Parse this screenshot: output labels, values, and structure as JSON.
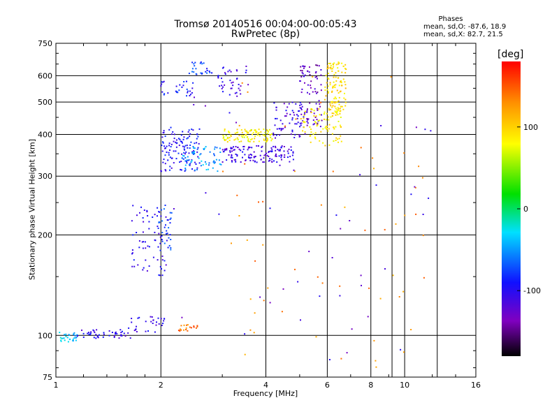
{
  "title": {
    "line1": "Tromsø 20140516 00:04:00-00:05:43",
    "line2": "RwPretec (8p)"
  },
  "phases": {
    "label": "Phases",
    "o_stats": "mean, sd,O: -87.6, 18.9",
    "x_stats": "mean, sd,X:  82.7, 21.5"
  },
  "colorbar": {
    "unit": "[deg]",
    "range": [
      -180,
      180
    ],
    "ticks": [
      {
        "value": 100,
        "label": "100"
      },
      {
        "value": 0,
        "label": "0"
      },
      {
        "value": -100,
        "label": "-100"
      }
    ]
  },
  "chart_data": {
    "type": "scatter",
    "title": "Tromsø 20140516 00:04:00-00:05:43",
    "subtitle": "RwPretec (8p)",
    "xlabel": "Frequency [MHz]",
    "ylabel": "Stationary phase Virtual Height [km]",
    "xscale": "log",
    "yscale": "log",
    "xlim": [
      1,
      16
    ],
    "ylim": [
      75,
      750
    ],
    "xticks": [
      1,
      2,
      4,
      6,
      8,
      10,
      16
    ],
    "yticks": [
      75,
      100,
      200,
      300,
      400,
      500,
      600,
      750
    ],
    "grid": true,
    "point_groups": [
      {
        "f0": 1.0,
        "f1": 1.15,
        "h0": 95,
        "h1": 103,
        "n": 30,
        "phase": -35
      },
      {
        "f0": 1.15,
        "f1": 1.65,
        "h0": 98,
        "h1": 104,
        "n": 45,
        "phase": -105
      },
      {
        "f0": 1.6,
        "f1": 2.05,
        "h0": 102,
        "h1": 115,
        "n": 30,
        "phase": -105
      },
      {
        "f0": 2.25,
        "f1": 2.55,
        "h0": 103,
        "h1": 108,
        "n": 20,
        "phase": 140
      },
      {
        "f0": 1.65,
        "f1": 2.1,
        "h0": 150,
        "h1": 250,
        "n": 70,
        "phase": -100
      },
      {
        "f0": 1.95,
        "f1": 2.15,
        "h0": 180,
        "h1": 240,
        "n": 30,
        "phase": -80
      },
      {
        "f0": 2.0,
        "f1": 2.6,
        "h0": 310,
        "h1": 420,
        "n": 120,
        "phase": -95
      },
      {
        "f0": 2.3,
        "f1": 3.0,
        "h0": 310,
        "h1": 370,
        "n": 60,
        "phase": -50
      },
      {
        "f0": 3.0,
        "f1": 4.8,
        "h0": 330,
        "h1": 370,
        "n": 140,
        "phase": -110
      },
      {
        "f0": 3.0,
        "f1": 4.2,
        "h0": 380,
        "h1": 415,
        "n": 100,
        "phase": 85
      },
      {
        "f0": 4.2,
        "f1": 5.3,
        "h0": 390,
        "h1": 500,
        "n": 70,
        "phase": -110
      },
      {
        "f0": 5.0,
        "f1": 5.8,
        "h0": 420,
        "h1": 650,
        "n": 80,
        "phase": -130
      },
      {
        "f0": 5.0,
        "f1": 6.6,
        "h0": 370,
        "h1": 480,
        "n": 90,
        "phase": 90
      },
      {
        "f0": 5.9,
        "f1": 6.8,
        "h0": 470,
        "h1": 660,
        "n": 110,
        "phase": 95
      },
      {
        "f0": 2.0,
        "f1": 2.5,
        "h0": 520,
        "h1": 580,
        "n": 30,
        "phase": -90
      },
      {
        "f0": 2.4,
        "f1": 2.8,
        "h0": 600,
        "h1": 660,
        "n": 25,
        "phase": -80
      },
      {
        "f0": 2.9,
        "f1": 3.6,
        "h0": 520,
        "h1": 640,
        "n": 40,
        "phase": -110
      },
      {
        "f0": 3.0,
        "f1": 12.0,
        "h0": 80,
        "h1": 600,
        "n": 60,
        "phase": 130
      },
      {
        "f0": 2.0,
        "f1": 12.0,
        "h0": 80,
        "h1": 600,
        "n": 45,
        "phase": -115
      }
    ]
  }
}
